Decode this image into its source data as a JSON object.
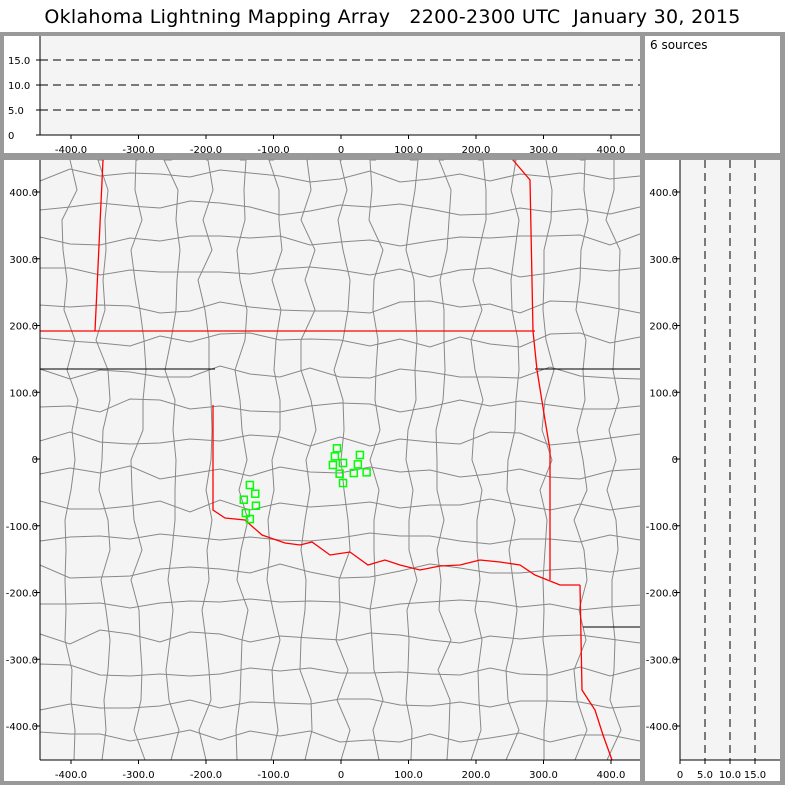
{
  "title": "Oklahoma Lightning Mapping Array   2200-2300 UTC  January 30, 2015",
  "info": {
    "source_count": "6 sources"
  },
  "colors": {
    "state_border": "#ff0000",
    "county_border": "#888888",
    "source_marker": "#00ff00",
    "plot_background": "#f4f4f4",
    "frame": "#999999"
  },
  "chart_data": [
    {
      "type": "scatter",
      "panel": "altitude-vs-east-west",
      "xlim": [
        -460,
        440
      ],
      "ylim": [
        0,
        20
      ],
      "xticks": [
        "-400.0",
        "-300.0",
        "-200.0",
        "-100.0",
        "0",
        "100.0",
        "200.0",
        "300.0",
        "400.0"
      ],
      "yticks": [
        "0",
        "5.0",
        "10.0",
        "15.0"
      ],
      "grid": "dashed horizontal at 5, 10, 15",
      "points": []
    },
    {
      "type": "scatter",
      "panel": "plan-view-map",
      "xlim": [
        -460,
        440
      ],
      "ylim": [
        -450,
        450
      ],
      "xticks": [
        "-400.0",
        "-300.0",
        "-200.0",
        "-100.0",
        "0",
        "100.0",
        "200.0",
        "300.0",
        "400.0"
      ],
      "yticks": [
        "400.0",
        "300.0",
        "200.0",
        "100.0",
        "0",
        "-100.0",
        "-200.0",
        "-300.0",
        "-400.0"
      ],
      "marker": "hollow square",
      "points": [
        {
          "x": -6,
          "y": 16
        },
        {
          "x": -9,
          "y": 4
        },
        {
          "x": -12,
          "y": -9
        },
        {
          "x": 3,
          "y": -6
        },
        {
          "x": 28,
          "y": 6
        },
        {
          "x": 25,
          "y": -8
        },
        {
          "x": -2,
          "y": -22
        },
        {
          "x": 19,
          "y": -21
        },
        {
          "x": 38,
          "y": -20
        },
        {
          "x": 3,
          "y": -36
        },
        {
          "x": -135,
          "y": -39
        },
        {
          "x": -127,
          "y": -52
        },
        {
          "x": -144,
          "y": -61
        },
        {
          "x": -126,
          "y": -70
        },
        {
          "x": -141,
          "y": -81
        },
        {
          "x": -135,
          "y": -90
        }
      ]
    },
    {
      "type": "scatter",
      "panel": "north-south-vs-altitude",
      "xlim": [
        0,
        20
      ],
      "ylim": [
        -450,
        450
      ],
      "xticks": [
        "0",
        "5.0",
        "10.0",
        "15.0"
      ],
      "yticks": [
        "400.0",
        "300.0",
        "200.0",
        "100.0",
        "0",
        "-100.0",
        "-200.0",
        "-300.0",
        "-400.0"
      ],
      "grid": "dashed vertical at 5, 10, 15",
      "points": []
    }
  ]
}
